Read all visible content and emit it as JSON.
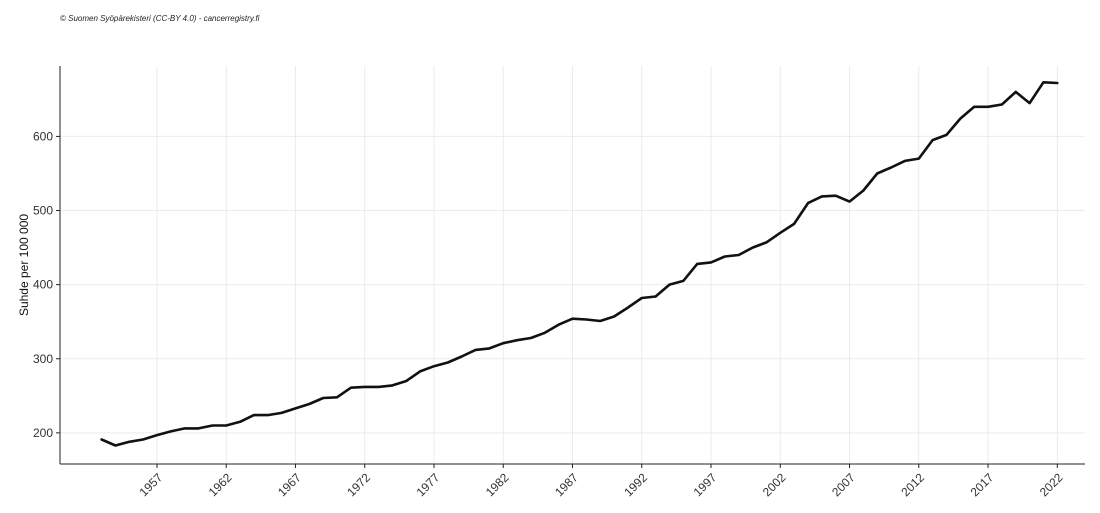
{
  "credit": "© Suomen Syöpärekisteri (CC-BY 4.0) - cancerregistry.fi",
  "chart_data": {
    "type": "line",
    "title": "",
    "xlabel": "",
    "ylabel": "Suhde per 100 000",
    "xlim": [
      1950,
      2024
    ],
    "ylim": [
      158,
      695
    ],
    "x_ticks": [
      1957,
      1962,
      1967,
      1972,
      1977,
      1982,
      1987,
      1992,
      1997,
      2002,
      2007,
      2012,
      2017,
      2022
    ],
    "y_ticks": [
      200,
      300,
      400,
      500,
      600
    ],
    "grid": true,
    "legend": "none",
    "line_color": "#111111",
    "series": [
      {
        "x": [
          1953,
          1954,
          1955,
          1956,
          1957,
          1958,
          1959,
          1960,
          1961,
          1962,
          1963,
          1964,
          1965,
          1966,
          1967,
          1968,
          1969,
          1970,
          1971,
          1972,
          1973,
          1974,
          1975,
          1976,
          1977,
          1978,
          1979,
          1980,
          1981,
          1982,
          1983,
          1984,
          1985,
          1986,
          1987,
          1988,
          1989,
          1990,
          1991,
          1992,
          1993,
          1994,
          1995,
          1996,
          1997,
          1998,
          1999,
          2000,
          2001,
          2002,
          2003,
          2004,
          2005,
          2006,
          2007,
          2008,
          2009,
          2010,
          2011,
          2012,
          2013,
          2014,
          2015,
          2016,
          2017,
          2018,
          2019,
          2020,
          2021,
          2022
        ],
        "values": [
          191,
          183,
          188,
          191,
          197,
          202,
          206,
          206,
          210,
          210,
          215,
          224,
          224,
          227,
          233,
          239,
          247,
          248,
          261,
          262,
          262,
          264,
          270,
          283,
          290,
          295,
          303,
          312,
          314,
          321,
          325,
          328,
          335,
          346,
          354,
          353,
          351,
          357,
          369,
          382,
          384,
          400,
          405,
          428,
          430,
          438,
          440,
          450,
          457,
          470,
          482,
          510,
          519,
          520,
          512,
          527,
          550,
          558,
          567,
          570,
          595,
          602,
          624,
          640,
          640,
          643,
          660,
          645,
          673,
          672
        ]
      }
    ]
  }
}
